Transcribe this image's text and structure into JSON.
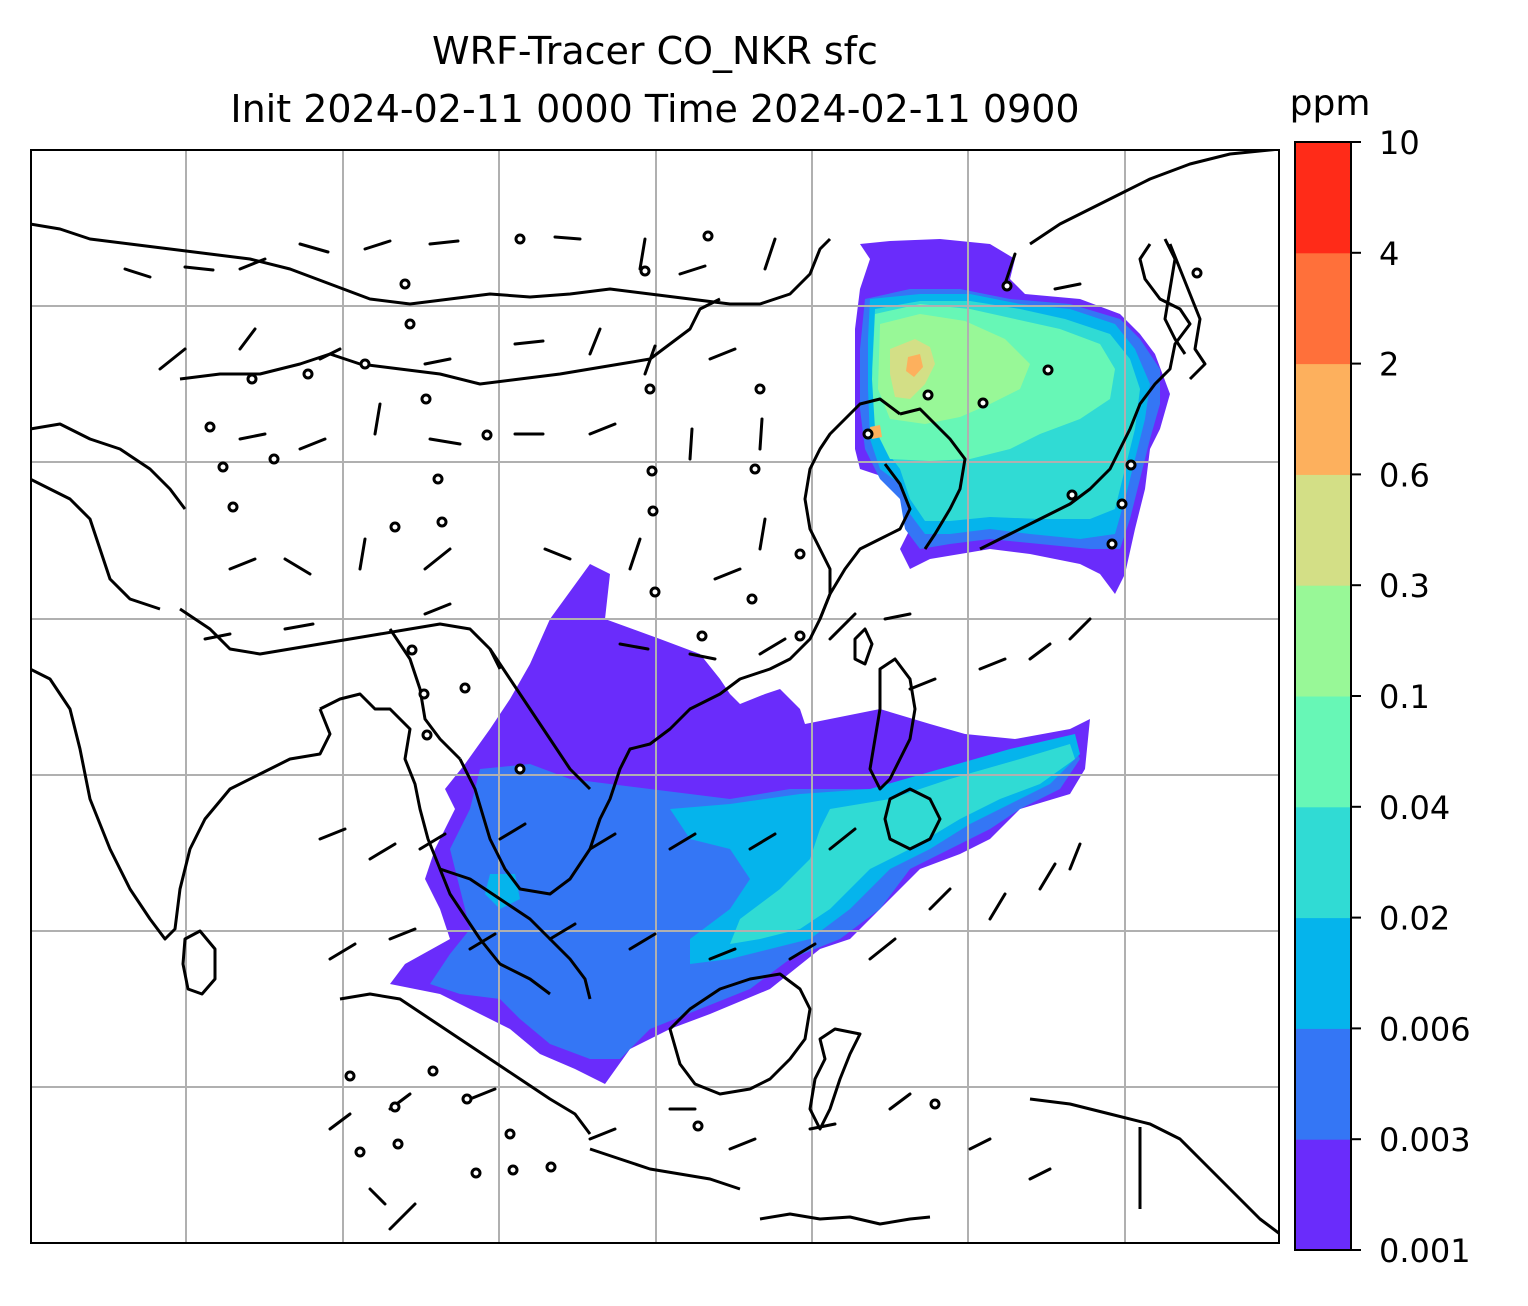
{
  "title_line1": "WRF-Tracer CO_NKR sfc",
  "title_line2": "Init 2024-02-11 0000 Time 2024-02-11 0900",
  "colorbar": {
    "unit": "ppm",
    "levels": [
      "0.001",
      "0.003",
      "0.006",
      "0.02",
      "0.04",
      "0.1",
      "0.3",
      "0.6",
      "2",
      "4",
      "10"
    ],
    "colors": [
      "#6a2cfb",
      "#3476f5",
      "#05b4ec",
      "#30dbd4",
      "#67f7b6",
      "#98f897",
      "#d3df86",
      "#fdb05d",
      "#ff703a",
      "#ff2b18"
    ]
  },
  "map": {
    "gridlines": "on",
    "land_outline_color": "#000000",
    "grid_color": "#b0b0b0"
  }
}
